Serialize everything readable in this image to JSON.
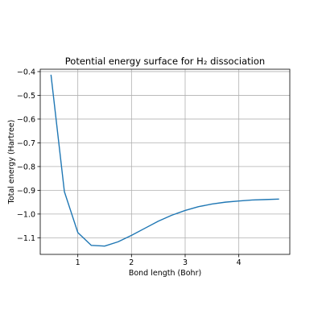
{
  "chart_data": {
    "type": "line",
    "title": "Potential energy surface for H₂ dissociation",
    "xlabel": "Bond length (Bohr)",
    "ylabel": "Total energy (Hartree)",
    "xlim": [
      0.3,
      4.95
    ],
    "ylim": [
      -1.17,
      -0.39
    ],
    "xticks": [
      1,
      2,
      3,
      4
    ],
    "yticks": [
      -0.4,
      -0.5,
      -0.6,
      -0.7,
      -0.8,
      -0.9,
      -1.0,
      -1.1
    ],
    "grid": true,
    "series": [
      {
        "color": "#1f77b4",
        "x": [
          0.5,
          0.75,
          1.0,
          1.25,
          1.5,
          1.75,
          2.0,
          2.25,
          2.5,
          2.75,
          3.0,
          3.25,
          3.5,
          3.75,
          4.0,
          4.25,
          4.5,
          4.75
        ],
        "y": [
          -0.413,
          -0.906,
          -1.078,
          -1.132,
          -1.135,
          -1.117,
          -1.09,
          -1.06,
          -1.03,
          -1.005,
          -0.985,
          -0.969,
          -0.958,
          -0.95,
          -0.945,
          -0.941,
          -0.939,
          -0.937
        ]
      }
    ]
  }
}
